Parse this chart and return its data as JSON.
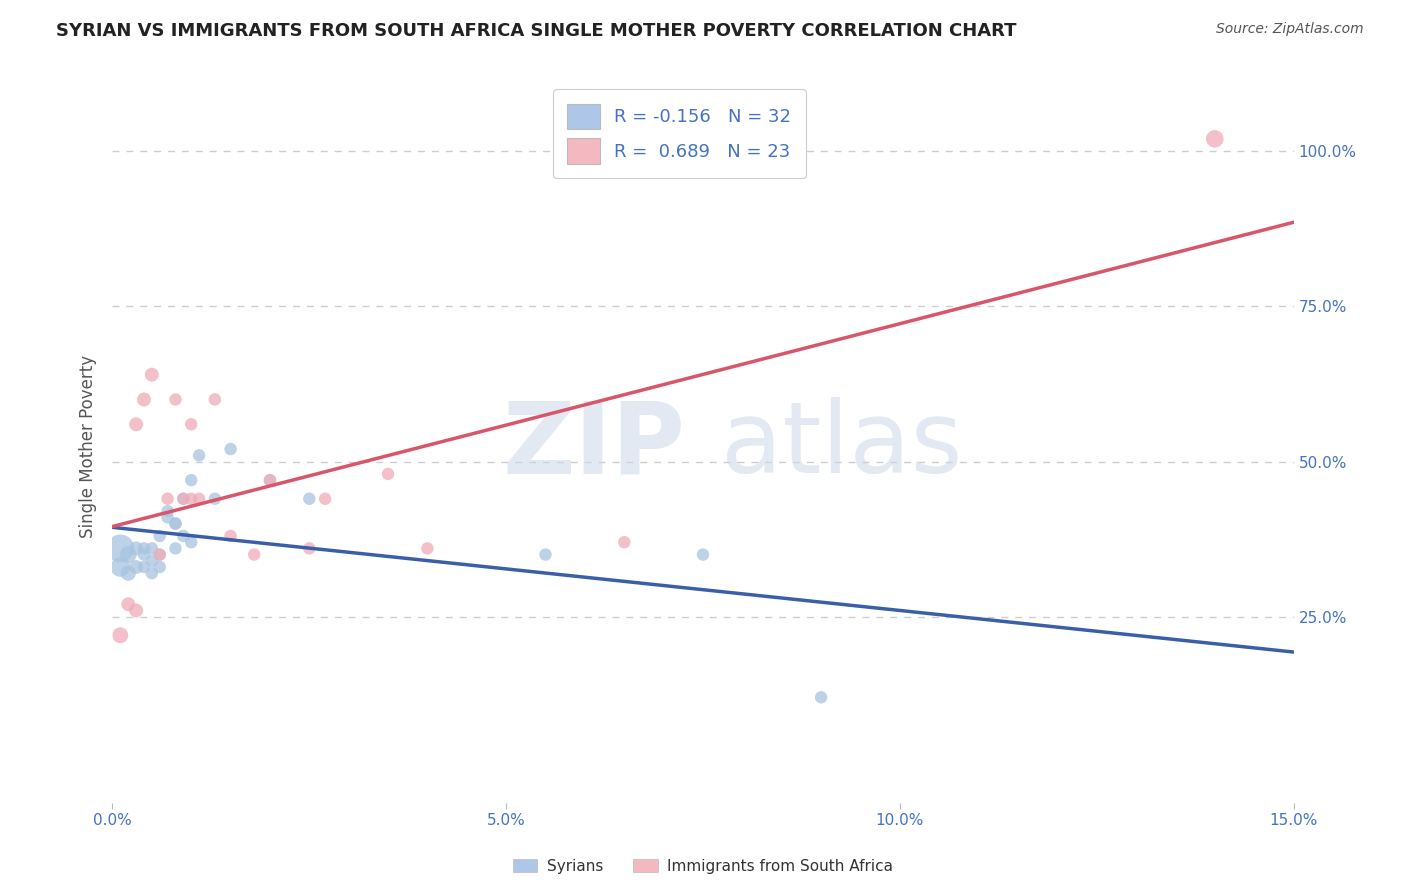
{
  "title": "SYRIAN VS IMMIGRANTS FROM SOUTH AFRICA SINGLE MOTHER POVERTY CORRELATION CHART",
  "source": "Source: ZipAtlas.com",
  "ylabel": "Single Mother Poverty",
  "xlim": [
    0.0,
    0.15
  ],
  "ylim": [
    -0.05,
    1.1
  ],
  "yticks_right": [
    0.25,
    0.5,
    0.75,
    1.0
  ],
  "ytick_right_labels": [
    "25.0%",
    "50.0%",
    "75.0%",
    "100.0%"
  ],
  "xticks": [
    0.0,
    0.05,
    0.1,
    0.15
  ],
  "xtick_labels": [
    "0.0%",
    "5.0%",
    "10.0%",
    "15.0%"
  ],
  "syrians_x": [
    0.001,
    0.001,
    0.002,
    0.002,
    0.003,
    0.003,
    0.004,
    0.004,
    0.004,
    0.005,
    0.005,
    0.005,
    0.006,
    0.006,
    0.006,
    0.007,
    0.007,
    0.008,
    0.008,
    0.008,
    0.009,
    0.009,
    0.01,
    0.01,
    0.011,
    0.013,
    0.015,
    0.02,
    0.025,
    0.055,
    0.075,
    0.09
  ],
  "syrians_y": [
    0.36,
    0.33,
    0.35,
    0.32,
    0.36,
    0.33,
    0.35,
    0.33,
    0.36,
    0.34,
    0.36,
    0.32,
    0.38,
    0.35,
    0.33,
    0.42,
    0.41,
    0.4,
    0.4,
    0.36,
    0.44,
    0.38,
    0.47,
    0.37,
    0.51,
    0.44,
    0.52,
    0.47,
    0.44,
    0.35,
    0.35,
    0.12
  ],
  "syrians_sizes": [
    400,
    200,
    150,
    120,
    100,
    100,
    80,
    80,
    80,
    80,
    80,
    80,
    80,
    80,
    80,
    80,
    80,
    80,
    80,
    80,
    80,
    80,
    80,
    80,
    80,
    80,
    80,
    80,
    80,
    80,
    80,
    80
  ],
  "sa_x": [
    0.001,
    0.002,
    0.003,
    0.003,
    0.004,
    0.005,
    0.006,
    0.007,
    0.008,
    0.009,
    0.01,
    0.01,
    0.011,
    0.013,
    0.015,
    0.018,
    0.02,
    0.025,
    0.027,
    0.035,
    0.04,
    0.065,
    0.14
  ],
  "sa_y": [
    0.22,
    0.27,
    0.26,
    0.56,
    0.6,
    0.64,
    0.35,
    0.44,
    0.6,
    0.44,
    0.56,
    0.44,
    0.44,
    0.6,
    0.38,
    0.35,
    0.47,
    0.36,
    0.44,
    0.48,
    0.36,
    0.37,
    1.02
  ],
  "sa_sizes": [
    130,
    100,
    100,
    100,
    100,
    100,
    80,
    80,
    80,
    80,
    80,
    80,
    80,
    80,
    80,
    80,
    80,
    80,
    80,
    80,
    80,
    80,
    160
  ],
  "blue_line_color": "#3a5fa8",
  "pink_line_color": "#d9556a",
  "blue_scatter_color": "#a8c4e0",
  "pink_scatter_color": "#f0aab8",
  "blue_legend_color": "#aec6e8",
  "pink_legend_color": "#f4b8c1",
  "R_syrian": "-0.156",
  "N_syrian": "32",
  "R_sa": "0.689",
  "N_sa": "23",
  "label_syrian": "Syrians",
  "label_sa": "Immigrants from South Africa",
  "watermark_zip_color": "#ccd8e8",
  "watermark_atlas_color": "#ccd8e8",
  "background_color": "#ffffff",
  "grid_color": "#c8c8c8",
  "title_color": "#222222",
  "axis_label_color": "#4472c4",
  "text_color": "#555555"
}
